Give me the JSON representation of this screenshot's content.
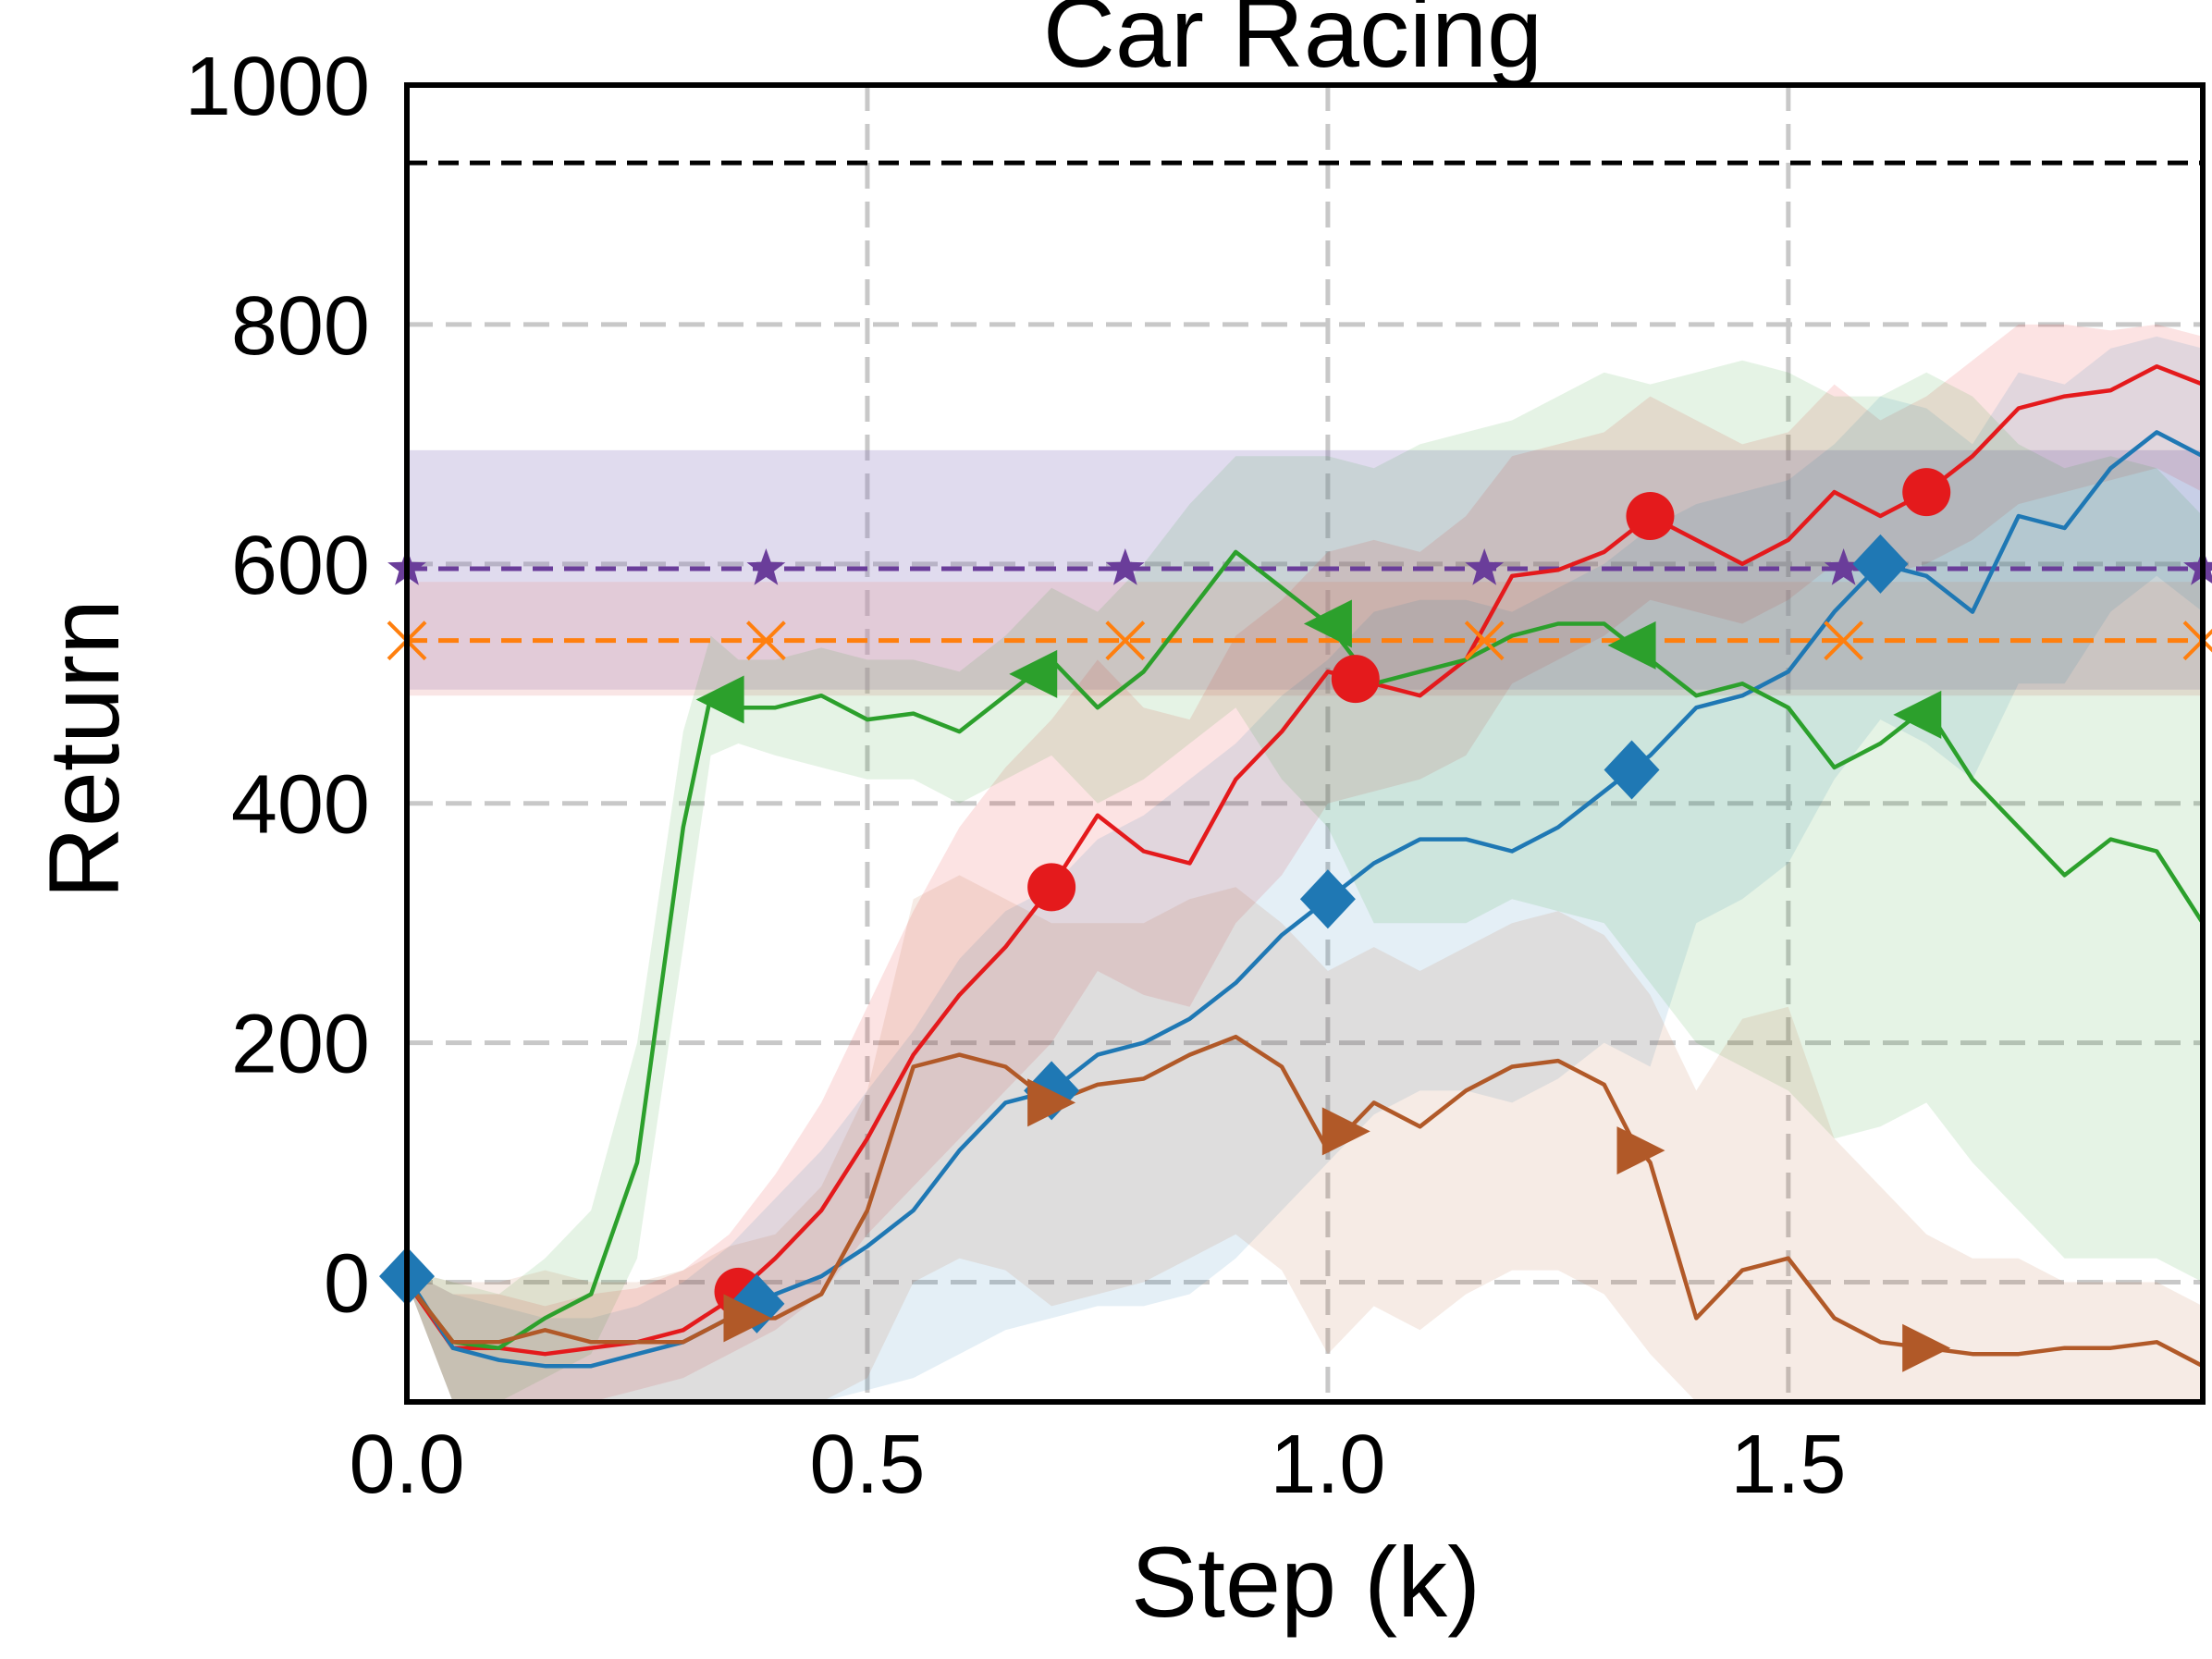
{
  "chart_data": {
    "type": "line",
    "title": "Car Racing",
    "xlabel": "Step (k)",
    "ylabel": "Return",
    "xlim": [
      0.0,
      1.95
    ],
    "ylim": [
      -100,
      1000
    ],
    "xticks": [
      0.0,
      0.5,
      1.0,
      1.5
    ],
    "xtick_labels": [
      "0.0",
      "0.5",
      "1.0",
      "1.5"
    ],
    "yticks": [
      0,
      200,
      400,
      600,
      800,
      1000
    ],
    "ytick_labels": [
      "0",
      "200",
      "400",
      "600",
      "800",
      "1000"
    ],
    "grid": true,
    "reference_lines": [
      {
        "name": "black-dashed",
        "y": 935,
        "color": "#000000"
      },
      {
        "name": "purple-baseline",
        "y": 596,
        "color": "#6a3d9a",
        "band": [
          495,
          695
        ],
        "band_color": "#8e7cc3",
        "marker": "star",
        "marker_x": [
          0.0,
          0.39,
          0.78,
          1.17,
          1.56,
          1.95
        ]
      },
      {
        "name": "orange-baseline",
        "y": 536,
        "color": "#ff7f0e",
        "band": [
          490,
          585
        ],
        "band_color": "#e8a0a0",
        "marker": "x",
        "marker_x": [
          0.0,
          0.39,
          0.78,
          1.17,
          1.56,
          1.95
        ]
      }
    ],
    "series": [
      {
        "name": "red",
        "color": "#e41a1c",
        "marker": "circle",
        "x": [
          0.0,
          0.05,
          0.1,
          0.15,
          0.2,
          0.25,
          0.3,
          0.35,
          0.4,
          0.45,
          0.5,
          0.55,
          0.6,
          0.65,
          0.7,
          0.75,
          0.8,
          0.85,
          0.9,
          0.95,
          1.0,
          1.05,
          1.1,
          1.15,
          1.2,
          1.25,
          1.3,
          1.35,
          1.4,
          1.45,
          1.5,
          1.55,
          1.6,
          1.65,
          1.7,
          1.75,
          1.8,
          1.85,
          1.9,
          1.95
        ],
        "y": [
          0,
          -55,
          -55,
          -60,
          -55,
          -50,
          -40,
          -15,
          20,
          60,
          120,
          190,
          240,
          280,
          330,
          390,
          360,
          350,
          420,
          460,
          510,
          500,
          490,
          520,
          590,
          595,
          610,
          640,
          620,
          600,
          620,
          660,
          640,
          660,
          690,
          730,
          740,
          745,
          765,
          750
        ],
        "marker_x": [
          0.36,
          0.7,
          1.03,
          1.35,
          1.65
        ],
        "band_low": [
          0,
          -100,
          -100,
          -100,
          -100,
          -90,
          -80,
          -60,
          -40,
          -10,
          40,
          80,
          120,
          160,
          200,
          260,
          240,
          230,
          300,
          340,
          400,
          410,
          420,
          440,
          500,
          520,
          540,
          570,
          560,
          550,
          570,
          600,
          590,
          600,
          620,
          650,
          660,
          670,
          680,
          660
        ],
        "band_high": [
          10,
          -10,
          -10,
          -20,
          -10,
          -5,
          10,
          40,
          90,
          150,
          230,
          310,
          380,
          430,
          470,
          520,
          480,
          470,
          540,
          570,
          610,
          620,
          610,
          640,
          690,
          700,
          710,
          740,
          720,
          700,
          710,
          750,
          720,
          740,
          770,
          800,
          800,
          795,
          800,
          790
        ]
      },
      {
        "name": "blue",
        "color": "#1f78b4",
        "marker": "diamond",
        "x": [
          0.0,
          0.05,
          0.1,
          0.15,
          0.2,
          0.25,
          0.3,
          0.35,
          0.4,
          0.45,
          0.5,
          0.55,
          0.6,
          0.65,
          0.7,
          0.75,
          0.8,
          0.85,
          0.9,
          0.95,
          1.0,
          1.05,
          1.1,
          1.15,
          1.2,
          1.25,
          1.3,
          1.35,
          1.4,
          1.45,
          1.5,
          1.55,
          1.6,
          1.65,
          1.7,
          1.75,
          1.8,
          1.85,
          1.9,
          1.95
        ],
        "y": [
          5,
          -55,
          -65,
          -70,
          -70,
          -60,
          -50,
          -30,
          -10,
          5,
          30,
          60,
          110,
          150,
          160,
          190,
          200,
          220,
          250,
          290,
          320,
          350,
          370,
          370,
          360,
          380,
          410,
          440,
          480,
          490,
          510,
          560,
          600,
          590,
          560,
          640,
          630,
          680,
          710,
          690
        ],
        "marker_x": [
          0.0,
          0.38,
          0.7,
          1.0,
          1.33,
          1.6
        ],
        "band_low": [
          0,
          -100,
          -100,
          -100,
          -100,
          -100,
          -100,
          -100,
          -100,
          -100,
          -90,
          -80,
          -60,
          -40,
          -30,
          -20,
          -20,
          -10,
          20,
          60,
          100,
          140,
          160,
          160,
          150,
          170,
          200,
          180,
          300,
          320,
          350,
          420,
          470,
          450,
          420,
          500,
          500,
          560,
          590,
          560
        ],
        "band_high": [
          10,
          -10,
          -20,
          -30,
          -30,
          -20,
          0,
          30,
          70,
          110,
          160,
          210,
          270,
          310,
          330,
          370,
          390,
          420,
          450,
          490,
          520,
          560,
          570,
          570,
          560,
          580,
          600,
          630,
          650,
          660,
          670,
          700,
          740,
          730,
          700,
          760,
          750,
          780,
          790,
          780
        ]
      },
      {
        "name": "green",
        "color": "#2ca02c",
        "marker": "triangle-left",
        "x": [
          0.0,
          0.05,
          0.1,
          0.15,
          0.2,
          0.25,
          0.3,
          0.33,
          0.36,
          0.4,
          0.45,
          0.5,
          0.55,
          0.6,
          0.65,
          0.7,
          0.75,
          0.8,
          0.85,
          0.9,
          0.95,
          1.0,
          1.05,
          1.1,
          1.15,
          1.2,
          1.25,
          1.3,
          1.35,
          1.4,
          1.45,
          1.5,
          1.55,
          1.6,
          1.65,
          1.7,
          1.75,
          1.8,
          1.85,
          1.9,
          1.95
        ],
        "y": [
          0,
          -50,
          -55,
          -30,
          -10,
          100,
          380,
          490,
          480,
          480,
          490,
          470,
          475,
          460,
          490,
          520,
          480,
          510,
          560,
          610,
          580,
          550,
          500,
          510,
          520,
          540,
          550,
          550,
          520,
          490,
          500,
          480,
          430,
          450,
          480,
          420,
          380,
          340,
          370,
          360,
          300
        ],
        "marker_x": [
          0.34,
          0.68,
          1.0,
          1.33,
          1.64
        ],
        "band_low": [
          0,
          -100,
          -100,
          -80,
          -60,
          20,
          280,
          440,
          450,
          440,
          430,
          420,
          420,
          400,
          420,
          440,
          400,
          420,
          450,
          480,
          420,
          380,
          300,
          300,
          300,
          320,
          310,
          300,
          250,
          200,
          180,
          160,
          120,
          130,
          150,
          100,
          60,
          20,
          20,
          20,
          0
        ],
        "band_high": [
          10,
          0,
          -10,
          20,
          60,
          200,
          460,
          540,
          520,
          520,
          530,
          520,
          520,
          510,
          540,
          580,
          560,
          600,
          650,
          690,
          690,
          690,
          680,
          700,
          710,
          720,
          740,
          760,
          750,
          760,
          770,
          760,
          740,
          740,
          760,
          740,
          700,
          680,
          690,
          680,
          640
        ]
      },
      {
        "name": "brown",
        "color": "#b15928",
        "marker": "triangle-right",
        "x": [
          0.0,
          0.05,
          0.1,
          0.15,
          0.2,
          0.25,
          0.3,
          0.35,
          0.4,
          0.45,
          0.5,
          0.55,
          0.6,
          0.65,
          0.7,
          0.75,
          0.8,
          0.85,
          0.9,
          0.95,
          1.0,
          1.05,
          1.1,
          1.15,
          1.2,
          1.25,
          1.3,
          1.33,
          1.35,
          1.4,
          1.45,
          1.5,
          1.55,
          1.6,
          1.65,
          1.7,
          1.75,
          1.8,
          1.85,
          1.9,
          1.95
        ],
        "y": [
          0,
          -50,
          -50,
          -40,
          -50,
          -50,
          -50,
          -30,
          -30,
          -10,
          60,
          180,
          190,
          180,
          150,
          165,
          170,
          190,
          205,
          180,
          110,
          150,
          130,
          160,
          180,
          185,
          165,
          120,
          100,
          -30,
          10,
          20,
          -30,
          -50,
          -55,
          -60,
          -60,
          -55,
          -55,
          -50,
          -70
        ],
        "marker_x": [
          0.37,
          0.7,
          1.02,
          1.34,
          1.65
        ],
        "band_low": [
          0,
          -100,
          -100,
          -100,
          -100,
          -100,
          -100,
          -100,
          -100,
          -100,
          -80,
          0,
          20,
          10,
          -20,
          -10,
          0,
          20,
          40,
          10,
          -60,
          -20,
          -40,
          -10,
          10,
          10,
          -10,
          -40,
          -60,
          -100,
          -100,
          -100,
          -100,
          -100,
          -100,
          -100,
          -100,
          -100,
          -100,
          -100,
          -100
        ],
        "band_high": [
          10,
          0,
          0,
          10,
          0,
          0,
          10,
          30,
          40,
          80,
          160,
          320,
          340,
          320,
          300,
          300,
          300,
          320,
          330,
          300,
          260,
          280,
          260,
          280,
          300,
          310,
          290,
          260,
          240,
          160,
          220,
          230,
          120,
          80,
          40,
          20,
          20,
          0,
          0,
          0,
          -20
        ]
      }
    ]
  }
}
